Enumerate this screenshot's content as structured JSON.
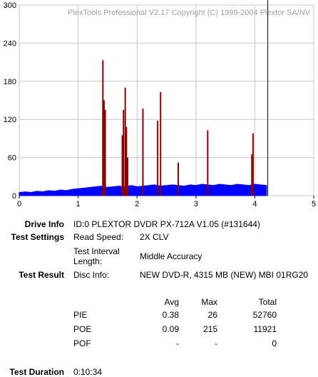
{
  "chart_data": {
    "type": "bar",
    "caption": "PlexTools Professional V2.17 Copyright (C) 1999-2004 Plextor SA/NV",
    "xlim": [
      0,
      5
    ],
    "xticks": [
      0,
      1,
      2,
      3,
      4,
      5
    ],
    "ylim": [
      0,
      300
    ],
    "yticks": [
      0,
      60,
      120,
      180,
      240,
      300
    ],
    "grid": true,
    "end_marker": 4.22,
    "end_marker_color": "#000000",
    "series": [
      {
        "color": "#0000ff",
        "x": [
          0,
          0.1,
          0.2,
          0.3,
          0.4,
          0.5,
          0.6,
          0.7,
          0.8,
          0.9,
          1.0,
          1.1,
          1.2,
          1.3,
          1.4,
          1.5,
          1.6,
          1.7,
          1.8,
          1.9,
          2.0,
          2.1,
          2.2,
          2.3,
          2.4,
          2.5,
          2.6,
          2.7,
          2.8,
          2.9,
          3.0,
          3.1,
          3.2,
          3.3,
          3.4,
          3.5,
          3.6,
          3.7,
          3.8,
          3.9,
          4.0,
          4.1,
          4.2
        ],
        "values": [
          5,
          6,
          5,
          7,
          6,
          8,
          7,
          9,
          8,
          10,
          11,
          12,
          13,
          14,
          15,
          13,
          14,
          15,
          14,
          16,
          14,
          15,
          16,
          17,
          15,
          16,
          17,
          16,
          15,
          17,
          16,
          18,
          17,
          16,
          18,
          17,
          16,
          18,
          17,
          16,
          18,
          17,
          16
        ]
      },
      {
        "color": "#8b0000",
        "x": [
          1.42,
          1.44,
          1.46,
          1.75,
          1.77,
          1.8,
          1.82,
          1.84,
          2.1,
          2.35,
          2.4,
          2.7,
          3.2,
          3.95,
          3.97
        ],
        "values": [
          213,
          150,
          135,
          95,
          135,
          170,
          108,
          60,
          137,
          118,
          163,
          52,
          103,
          65,
          98
        ]
      }
    ]
  },
  "info": {
    "drive_info": {
      "label": "Drive Info",
      "value": "ID:0 PLEXTOR DVDR PX-712A V1.05 (#131644)"
    },
    "test_settings": {
      "label": "Test Settings",
      "speed_label": "Read Speed:",
      "speed": "2X CLV",
      "interval_label_1": "Test Interval",
      "interval_label_2": "Length:",
      "interval": "Middle Accuracy"
    },
    "test_result": {
      "label": "Test Result",
      "disc_label": "Disc Info:",
      "disc": "NEW DVD-R, 4315 MB (NEW) MBI 01RG20"
    },
    "stats": {
      "header": [
        "Avg",
        "Max",
        "Total"
      ],
      "rows": [
        [
          "PIE",
          "0.38",
          "26",
          "52760"
        ],
        [
          "POE",
          "0.09",
          "215",
          "11921"
        ],
        [
          "POF",
          "-",
          "-",
          "0"
        ]
      ]
    },
    "duration": {
      "label": "Test Duration",
      "value": "0:10:34"
    }
  }
}
